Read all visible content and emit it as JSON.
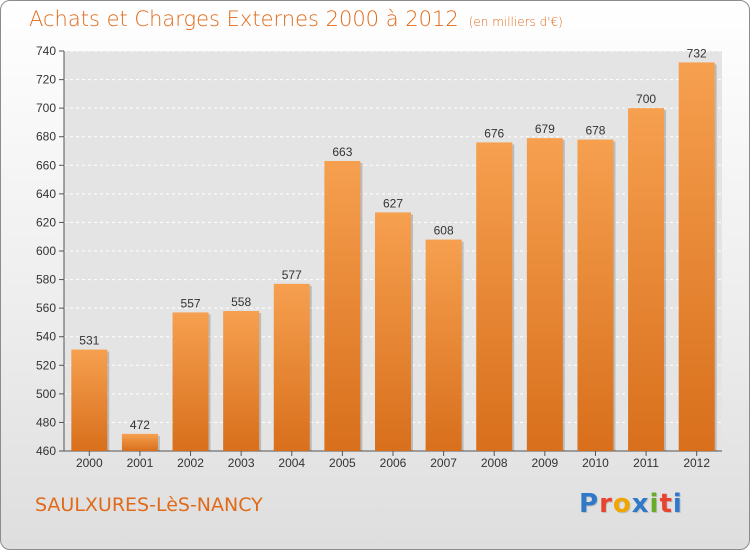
{
  "header": {
    "title": "Achats et Charges Externes 2000 à 2012",
    "unit": "(en milliers d'€)"
  },
  "footer": {
    "commune": "SAULXURES-LèS-NANCY",
    "brand_letters": [
      "P",
      "r",
      "o",
      "x",
      "i",
      "t",
      "i"
    ],
    "brand_colors": [
      "#2f79c8",
      "#e8432f",
      "#f0a500",
      "#2f79c8",
      "#6aaa2a",
      "#e8432f",
      "#2f79c8"
    ]
  },
  "colors": {
    "bar_top": "#f6a04f",
    "bar_bottom": "#d86f1c",
    "title": "#e06a1a"
  },
  "chart_data": {
    "type": "bar",
    "title": "Achats et Charges Externes 2000 à 2012",
    "categories": [
      "2000",
      "2001",
      "2002",
      "2003",
      "2004",
      "2005",
      "2006",
      "2007",
      "2008",
      "2009",
      "2010",
      "2011",
      "2012"
    ],
    "values": [
      531,
      472,
      557,
      558,
      577,
      663,
      627,
      608,
      676,
      679,
      678,
      700,
      732
    ],
    "yticks": [
      460,
      480,
      500,
      520,
      540,
      560,
      580,
      600,
      620,
      640,
      660,
      680,
      700,
      720,
      740
    ],
    "ylim": [
      460,
      740
    ],
    "grid": true,
    "legend": "none"
  }
}
